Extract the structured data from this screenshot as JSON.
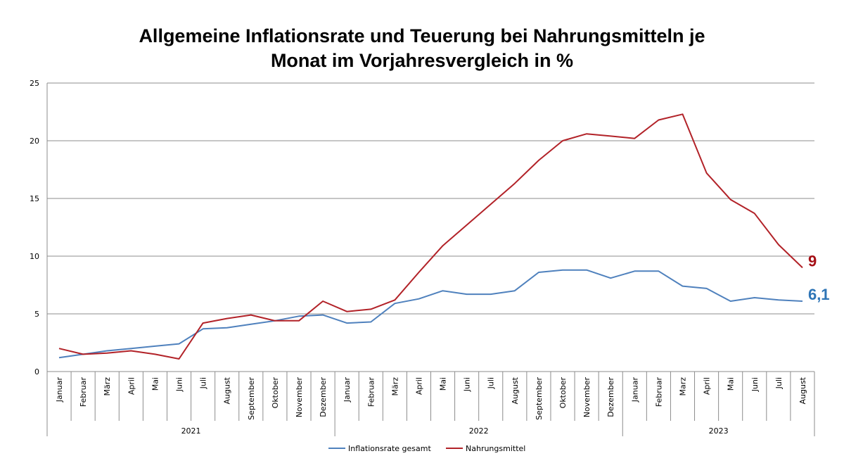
{
  "chart_data": {
    "type": "line",
    "title_line1": "Allgemeine Inflationsrate und Teuerung bei Nahrungsmitteln je",
    "title_line2": "Monat im Vorjahresvergleich in %",
    "ylim": [
      0,
      25
    ],
    "yticks": [
      "0",
      "5",
      "10",
      "15",
      "20",
      "25"
    ],
    "grid": true,
    "legend_position": "bottom",
    "categories": [
      "Januar",
      "Februar",
      "März",
      "April",
      "Mai",
      "Juni",
      "Juli",
      "August",
      "September",
      "Oktober",
      "November",
      "Dezember",
      "Januar",
      "Februar",
      "März",
      "April",
      "Mai",
      "Juni",
      "Juli",
      "August",
      "September",
      "Oktober",
      "November",
      "Dezember",
      "Januar",
      "Februar",
      "Marz",
      "April",
      "Mai",
      "Juni",
      "Juli",
      "August"
    ],
    "year_groups": [
      {
        "label": "2021",
        "count": 12
      },
      {
        "label": "2022",
        "count": 12
      },
      {
        "label": "2023",
        "count": 8
      }
    ],
    "series": [
      {
        "name": "Inflationsrate gesamt",
        "color": "#4F81BD",
        "values": [
          1.2,
          1.5,
          1.8,
          2.0,
          2.2,
          2.4,
          3.7,
          3.8,
          4.1,
          4.4,
          4.8,
          4.9,
          4.2,
          4.3,
          5.9,
          6.3,
          7.0,
          6.7,
          6.7,
          7.0,
          8.6,
          8.8,
          8.8,
          8.1,
          8.7,
          8.7,
          7.4,
          7.2,
          6.1,
          6.4,
          6.2,
          6.1
        ],
        "end_label": "6,1",
        "end_label_color": "#2E75B6"
      },
      {
        "name": "Nahrungsmittel",
        "color": "#B22228",
        "values": [
          2.0,
          1.5,
          1.6,
          1.8,
          1.5,
          1.1,
          4.2,
          4.6,
          4.9,
          4.4,
          4.4,
          6.1,
          5.2,
          5.4,
          6.2,
          8.6,
          10.9,
          12.7,
          14.5,
          16.3,
          18.3,
          20.0,
          20.6,
          20.4,
          20.2,
          21.8,
          22.3,
          17.2,
          14.9,
          13.7,
          11.0,
          9.0
        ],
        "end_label": "9",
        "end_label_color": "#A50F15"
      }
    ]
  }
}
